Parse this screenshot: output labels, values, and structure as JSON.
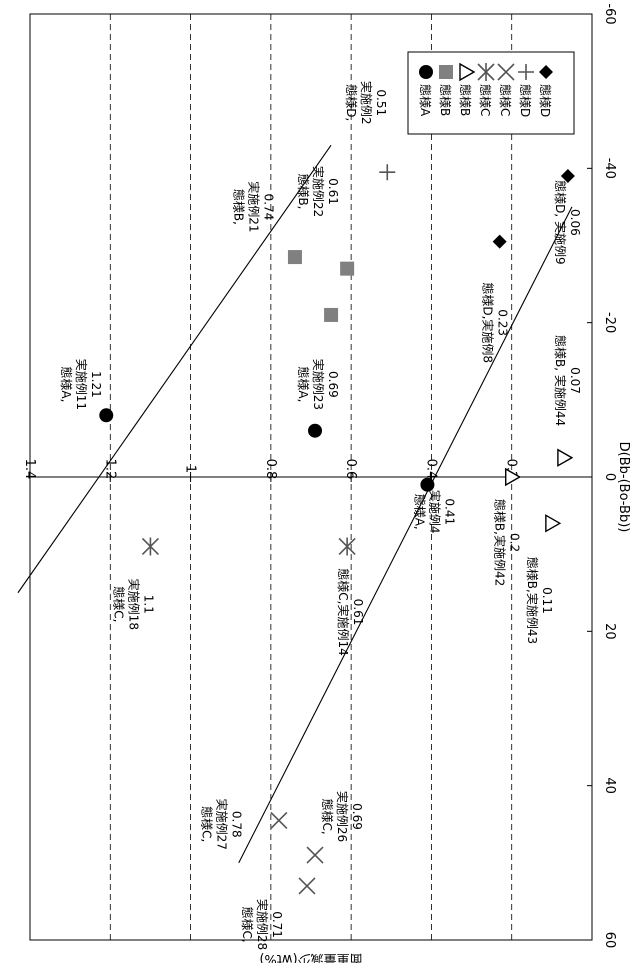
{
  "chart_data": {
    "type": "scatter",
    "orientation": "rotated 90 degrees clockwise (x axis runs down the right edge, y axis along the middle)",
    "xlabel": "D(Bb-(Bo-Bb))",
    "ylabel": "面重量減少(wt%)",
    "xlim": [
      -60,
      60
    ],
    "ylim": [
      0,
      1.4
    ],
    "xticks": [
      "-60",
      "-40",
      "-20",
      "0",
      "20",
      "40",
      "60"
    ],
    "yticks": [
      "0.2",
      "0.4",
      "0.6",
      "0.8",
      "1",
      "1.2",
      "1.4"
    ],
    "ygrid_dashed": [
      0.2,
      0.4,
      0.6,
      0.8,
      1.0,
      1.2
    ],
    "grid": true,
    "legend_position": "top-right",
    "series": [
      {
        "name": "態様A",
        "marker": "circle",
        "color": "#000000",
        "points": [
          {
            "x": -8,
            "y": 1.21
          },
          {
            "x": -6,
            "y": 0.69
          },
          {
            "x": 1,
            "y": 0.41
          }
        ]
      },
      {
        "name": "態様B",
        "marker": "square",
        "color": "#808080",
        "points": [
          {
            "x": -21,
            "y": 0.65
          },
          {
            "x": -27,
            "y": 0.61
          },
          {
            "x": -28.5,
            "y": 0.74
          }
        ]
      },
      {
        "name": "態様B",
        "marker": "triangle",
        "color": "#000000",
        "points": [
          {
            "x": 6,
            "y": 0.1
          },
          {
            "x": 0,
            "y": 0.2
          },
          {
            "x": -2.5,
            "y": 0.07
          }
        ]
      },
      {
        "name": "態様C",
        "marker": "asterisk",
        "color": "#555555",
        "points": [
          {
            "x": 9,
            "y": 1.1
          },
          {
            "x": 9,
            "y": 0.61
          }
        ]
      },
      {
        "name": "態様C",
        "marker": "x",
        "color": "#555555",
        "points": [
          {
            "x": 44.5,
            "y": 0.78
          },
          {
            "x": 49,
            "y": 0.69
          },
          {
            "x": 53,
            "y": 0.71
          }
        ]
      },
      {
        "name": "態様D",
        "marker": "plus",
        "color": "#555555",
        "points": [
          {
            "x": -39.5,
            "y": 0.51
          }
        ]
      },
      {
        "name": "態様D",
        "marker": "diamond",
        "color": "#000000",
        "points": [
          {
            "x": -30.5,
            "y": 0.23
          },
          {
            "x": -39,
            "y": 0.06
          }
        ]
      }
    ],
    "trend_lines": [
      {
        "points": [
          [
            15,
            1.43
          ],
          [
            -43,
            0.65
          ]
        ]
      },
      {
        "points": [
          [
            50,
            0.88
          ],
          [
            -35,
            0.05
          ]
        ]
      }
    ],
    "annotations": [
      {
        "lines": [
          "態様A,",
          "実施例11",
          "1.21"
        ],
        "x": -12,
        "y": 1.32
      },
      {
        "lines": [
          "態様A,",
          "実施例23",
          "0.69"
        ],
        "x": -12,
        "y": 0.73
      },
      {
        "lines": [
          "態様A,",
          "実施例4",
          "0.41"
        ],
        "x": 4.5,
        "y": 0.44
      },
      {
        "lines": [
          "態様B,",
          "実施例21",
          "0.74"
        ],
        "x": -35,
        "y": 0.89
      },
      {
        "lines": [
          "態様B,",
          "実施例22",
          "0.61"
        ],
        "x": -37,
        "y": 0.73
      },
      {
        "lines": [
          "態様B,実施例42",
          "0.2"
        ],
        "x": 8.5,
        "y": 0.24
      },
      {
        "lines": [
          "態様B,実施例43",
          "0.11"
        ],
        "x": 16,
        "y": 0.16
      },
      {
        "lines": [
          "態様B, 実施例44",
          "0.07"
        ],
        "x": -12.5,
        "y": 0.09
      },
      {
        "lines": [
          "態様C,",
          "実施例18",
          "1.1"
        ],
        "x": 16.5,
        "y": 1.19
      },
      {
        "lines": [
          "態様C,実施例14",
          "0.61"
        ],
        "x": 17.5,
        "y": 0.63
      },
      {
        "lines": [
          "態様C,",
          "実施例27",
          "0.78"
        ],
        "x": 45,
        "y": 0.97
      },
      {
        "lines": [
          "態様C,",
          "実施例26",
          "0.69"
        ],
        "x": 44,
        "y": 0.67
      },
      {
        "lines": [
          "態様C,",
          "実施例28",
          "0.71"
        ],
        "x": 58,
        "y": 0.87
      },
      {
        "lines": [
          "態様D,",
          "実施例2",
          "0.51"
        ],
        "x": -48.5,
        "y": 0.61
      },
      {
        "lines": [
          "態様D,実施例8",
          "0.23"
        ],
        "x": -20,
        "y": 0.27
      },
      {
        "lines": [
          "態様D, 実施例9",
          "0.06"
        ],
        "x": -33,
        "y": 0.09
      }
    ]
  }
}
